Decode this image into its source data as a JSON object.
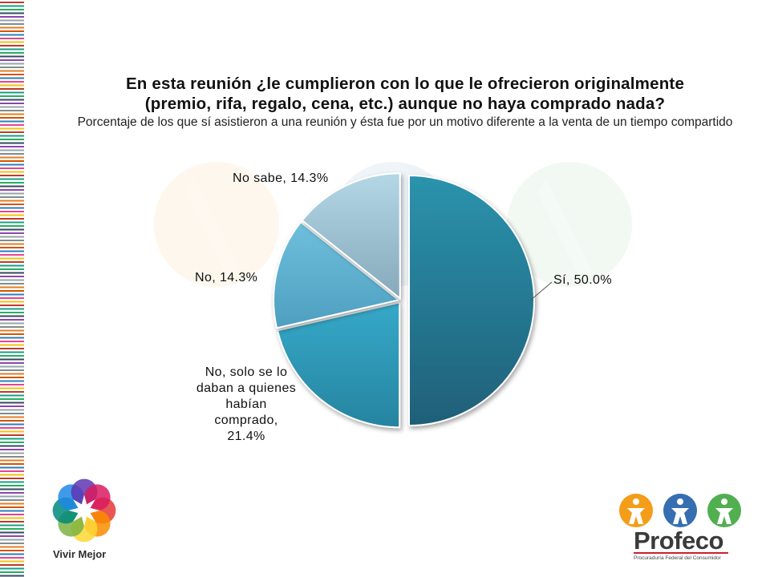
{
  "title": {
    "line1": "En esta reunión ¿le cumplieron con lo que le ofrecieron originalmente",
    "line2": "(premio, rifa, regalo, cena, etc.) aunque no haya comprado nada?",
    "subtitle": "Porcentaje de los que sí asistieron a una reunión y ésta fue por un motivo diferente a la venta de un tiempo compartido"
  },
  "chart_data": {
    "type": "pie",
    "title": "En esta reunión ¿le cumplieron con lo que le ofrecieron originalmente (premio, rifa, regalo, cena, etc.) aunque no haya comprado nada?",
    "subtitle": "Porcentaje de los que sí asistieron a una reunión y ésta fue por un motivo diferente a la venta de un tiempo compartido",
    "slices": [
      {
        "label": "Sí",
        "value": 50.0,
        "display": "Sí, 50.0%",
        "color": "#2a8fa6"
      },
      {
        "label": "No, solo se lo daban a quienes habían comprado",
        "value": 21.4,
        "display": "No, solo se lo daban a quienes habían comprado, 21.4%",
        "color": "#33a6c6"
      },
      {
        "label": "No",
        "value": 14.3,
        "display": "No, 14.3%",
        "color": "#5fb3d2"
      },
      {
        "label": "No sabe",
        "value": 14.3,
        "display": "No sabe, 14.3%",
        "color": "#9fc6da"
      }
    ],
    "label_lines": {
      "si": "Sí, 50.0%",
      "no": "No, 14.3%",
      "nosabe": "No sabe, 14.3%",
      "nosolo": [
        "No, solo se lo",
        "daban a quienes",
        "habían",
        "comprado,",
        "21.4%"
      ]
    }
  },
  "logos": {
    "vivir_mejor": "Vivir Mejor",
    "profeco": "Profeco",
    "profeco_sub": "Procuraduría Federal del Consumidor"
  }
}
